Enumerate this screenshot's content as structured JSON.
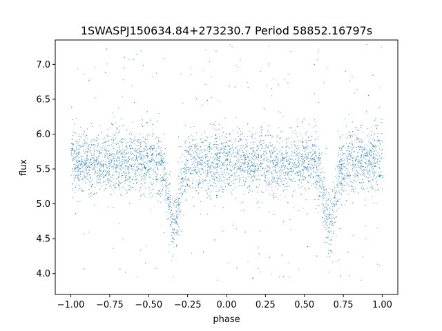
{
  "chart_data": {
    "type": "scatter",
    "title": "1SWASPJ150634.84+273230.7 Period 58852.16797s",
    "xlabel": "phase",
    "ylabel": "flux",
    "xlim": [
      -1.1,
      1.1
    ],
    "ylim": [
      3.7,
      7.35
    ],
    "x_ticks": [
      -1.0,
      -0.75,
      -0.5,
      -0.25,
      0.0,
      0.25,
      0.5,
      0.75,
      1.0
    ],
    "x_tick_labels": [
      "−1.00",
      "−0.75",
      "−0.50",
      "−0.25",
      "0.00",
      "0.25",
      "0.50",
      "0.75",
      "1.00"
    ],
    "y_ticks": [
      4.0,
      4.5,
      5.0,
      5.5,
      6.0,
      6.5,
      7.0
    ],
    "y_tick_labels": [
      "4.0",
      "4.5",
      "5.0",
      "5.5",
      "6.0",
      "6.5",
      "7.0"
    ],
    "grid": false,
    "marker_color": "#1f77b4",
    "series": [
      {
        "phase_range": [
          -1.0,
          1.0
        ],
        "baseline_flux": 5.6,
        "typical_scatter_band": [
          5.0,
          6.1
        ],
        "outlier_flux_range": [
          3.9,
          7.3
        ],
        "eclipses": [
          {
            "center_phase": -0.34,
            "minimum_flux": 4.7
          },
          {
            "center_phase": 0.66,
            "minimum_flux": 4.7
          }
        ]
      }
    ]
  }
}
